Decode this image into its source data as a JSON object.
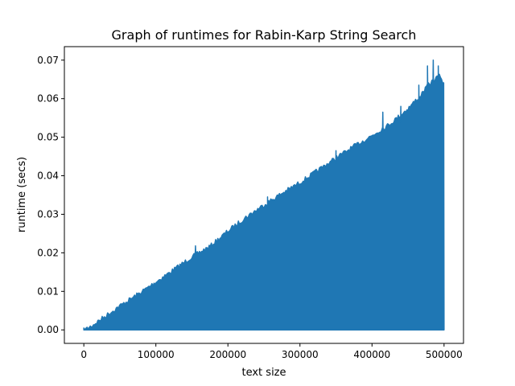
{
  "chart_data": {
    "type": "line",
    "title": "Graph of runtimes for Rabin-Karp String Search",
    "xlabel": "text size",
    "ylabel": "runtime (secs)",
    "xlim": [
      -27000,
      527000
    ],
    "ylim": [
      -0.0035,
      0.0735
    ],
    "xticks": [
      0,
      100000,
      200000,
      300000,
      400000,
      500000
    ],
    "yticks": [
      0.0,
      0.01,
      0.02,
      0.03,
      0.04,
      0.05,
      0.06,
      0.07
    ],
    "xtick_labels": [
      "0",
      "100000",
      "200000",
      "300000",
      "400000",
      "500000"
    ],
    "ytick_labels": [
      "0.00",
      "0.01",
      "0.02",
      "0.03",
      "0.04",
      "0.05",
      "0.06",
      "0.07"
    ],
    "grid": false,
    "series": [
      {
        "color": "#1f77b4",
        "upper_envelope": {
          "x": [
            0,
            10000,
            25000,
            50000,
            75000,
            100000,
            125000,
            150000,
            175000,
            200000,
            225000,
            250000,
            275000,
            300000,
            325000,
            350000,
            375000,
            400000,
            425000,
            450000,
            470000,
            480000,
            490000,
            495000,
            500000
          ],
          "y": [
            0.0005,
            0.0015,
            0.0035,
            0.0068,
            0.0098,
            0.013,
            0.0162,
            0.0195,
            0.0222,
            0.0262,
            0.0298,
            0.033,
            0.036,
            0.0388,
            0.042,
            0.0452,
            0.0482,
            0.051,
            0.054,
            0.058,
            0.062,
            0.0645,
            0.066,
            0.0665,
            0.064
          ]
        },
        "spikes": [
          {
            "x": 155000,
            "y": 0.0218
          },
          {
            "x": 255000,
            "y": 0.0345
          },
          {
            "x": 350000,
            "y": 0.0465
          },
          {
            "x": 415000,
            "y": 0.0565
          },
          {
            "x": 440000,
            "y": 0.058
          },
          {
            "x": 465000,
            "y": 0.0635
          },
          {
            "x": 477000,
            "y": 0.0685
          },
          {
            "x": 485000,
            "y": 0.07
          },
          {
            "x": 492000,
            "y": 0.0685
          }
        ],
        "lower_bound": 0.0
      }
    ]
  }
}
